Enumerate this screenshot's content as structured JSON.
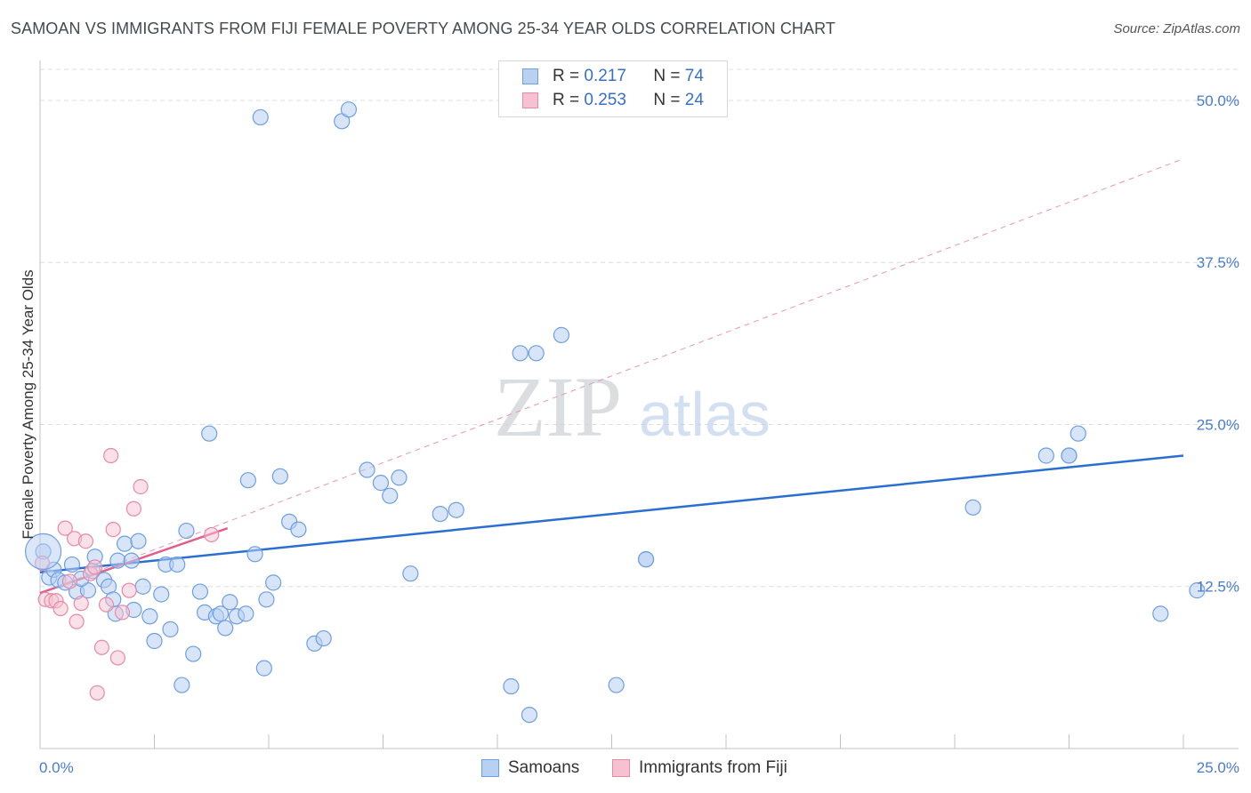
{
  "title": "SAMOAN VS IMMIGRANTS FROM FIJI FEMALE POVERTY AMONG 25-34 YEAR OLDS CORRELATION CHART",
  "source": "Source: ZipAtlas.com",
  "watermark": {
    "zip": "ZIP",
    "atlas": "atlas"
  },
  "legend": {
    "rows": [
      {
        "r_label": "R =",
        "r_value": "0.217",
        "n_label": "N =",
        "n_value": "74"
      },
      {
        "r_label": "R =",
        "r_value": "0.253",
        "n_label": "N =",
        "n_value": "24"
      }
    ]
  },
  "bottom_legend": {
    "samoans": "Samoans",
    "fiji": "Immigrants from Fiji"
  },
  "chart_data": {
    "type": "scatter",
    "title": "SAMOAN VS IMMIGRANTS FROM FIJI FEMALE POVERTY AMONG 25-34 YEAR OLDS CORRELATION CHART",
    "xlabel": "",
    "ylabel": "Female Poverty Among 25-34 Year Olds",
    "xlim": [
      0,
      25
    ],
    "ylim": [
      0,
      52.4
    ],
    "x_tick_labels": [
      "0.0%",
      "25.0%"
    ],
    "y_ticks": [
      12.5,
      25.0,
      37.5,
      50.0
    ],
    "y_tick_labels": [
      "12.5%",
      "25.0%",
      "37.5%",
      "50.0%"
    ],
    "colors": {
      "samoans": "#6f9fe0",
      "samoans_fill": "#b8d0f2",
      "samoans_line": "#2a6fd0",
      "fiji": "#e78aa6",
      "fiji_fill": "#f6c2d2",
      "fiji_line": "#e0608c"
    },
    "series": [
      {
        "name": "Samoans",
        "trend": {
          "x": [
            0,
            25
          ],
          "y": [
            13.6,
            22.6
          ]
        },
        "points": [
          [
            0.07,
            15.2
          ],
          [
            0.2,
            13.2
          ],
          [
            0.3,
            13.8
          ],
          [
            0.4,
            13.0
          ],
          [
            0.55,
            12.8
          ],
          [
            0.7,
            14.2
          ],
          [
            0.8,
            12.1
          ],
          [
            1.05,
            12.2
          ],
          [
            1.15,
            13.7
          ],
          [
            1.2,
            14.8
          ],
          [
            1.4,
            13.0
          ],
          [
            1.5,
            12.5
          ],
          [
            1.6,
            11.5
          ],
          [
            1.7,
            14.5
          ],
          [
            1.85,
            15.8
          ],
          [
            2.0,
            14.5
          ],
          [
            2.05,
            10.7
          ],
          [
            2.15,
            16.0
          ],
          [
            2.25,
            12.5
          ],
          [
            2.4,
            10.2
          ],
          [
            2.5,
            8.3
          ],
          [
            2.65,
            11.9
          ],
          [
            2.75,
            14.2
          ],
          [
            2.85,
            9.2
          ],
          [
            3.0,
            14.2
          ],
          [
            3.1,
            4.9
          ],
          [
            3.2,
            16.8
          ],
          [
            3.35,
            7.3
          ],
          [
            3.5,
            12.1
          ],
          [
            3.6,
            10.5
          ],
          [
            3.7,
            24.3
          ],
          [
            3.85,
            10.2
          ],
          [
            3.95,
            10.4
          ],
          [
            4.05,
            9.3
          ],
          [
            4.15,
            11.3
          ],
          [
            4.3,
            10.2
          ],
          [
            4.5,
            10.4
          ],
          [
            4.55,
            20.7
          ],
          [
            4.7,
            15.0
          ],
          [
            4.9,
            6.2
          ],
          [
            4.95,
            11.5
          ],
          [
            5.1,
            12.8
          ],
          [
            5.25,
            21.0
          ],
          [
            5.45,
            17.5
          ],
          [
            5.65,
            16.9
          ],
          [
            6.0,
            8.1
          ],
          [
            6.2,
            8.5
          ],
          [
            6.6,
            48.4
          ],
          [
            6.75,
            49.3
          ],
          [
            4.82,
            48.7
          ],
          [
            7.15,
            21.5
          ],
          [
            7.45,
            20.5
          ],
          [
            7.65,
            19.5
          ],
          [
            7.85,
            20.9
          ],
          [
            8.1,
            13.5
          ],
          [
            8.75,
            18.1
          ],
          [
            9.1,
            18.4
          ],
          [
            10.3,
            4.8
          ],
          [
            10.5,
            30.5
          ],
          [
            10.7,
            2.6
          ],
          [
            10.85,
            30.5
          ],
          [
            11.4,
            31.9
          ],
          [
            12.6,
            4.9
          ],
          [
            13.25,
            14.6
          ],
          [
            13.25,
            14.6
          ],
          [
            20.4,
            18.6
          ],
          [
            22.0,
            22.6
          ],
          [
            22.5,
            22.6
          ],
          [
            22.7,
            24.3
          ],
          [
            22.5,
            22.6
          ],
          [
            24.5,
            10.4
          ],
          [
            25.3,
            12.2
          ],
          [
            0.9,
            13.1
          ],
          [
            1.65,
            10.4
          ]
        ]
      },
      {
        "name": "Immigrants from Fiji",
        "trend": {
          "x": [
            0,
            4.1
          ],
          "y": [
            12.0,
            17.0
          ]
        },
        "trend_extended": {
          "x": [
            0,
            25
          ],
          "y": [
            12.0,
            45.5
          ]
        },
        "points": [
          [
            0.05,
            14.3
          ],
          [
            0.12,
            11.5
          ],
          [
            0.25,
            11.4
          ],
          [
            0.35,
            11.4
          ],
          [
            0.45,
            10.8
          ],
          [
            0.55,
            17.0
          ],
          [
            0.65,
            12.9
          ],
          [
            0.75,
            16.2
          ],
          [
            0.8,
            9.8
          ],
          [
            0.9,
            11.2
          ],
          [
            1.0,
            16.0
          ],
          [
            1.1,
            13.5
          ],
          [
            1.2,
            14.0
          ],
          [
            1.25,
            4.3
          ],
          [
            1.35,
            7.8
          ],
          [
            1.45,
            11.1
          ],
          [
            1.55,
            22.6
          ],
          [
            1.6,
            16.9
          ],
          [
            1.7,
            7.0
          ],
          [
            1.8,
            10.5
          ],
          [
            1.95,
            12.2
          ],
          [
            2.05,
            18.5
          ],
          [
            2.2,
            20.2
          ],
          [
            3.75,
            16.5
          ]
        ]
      }
    ]
  }
}
